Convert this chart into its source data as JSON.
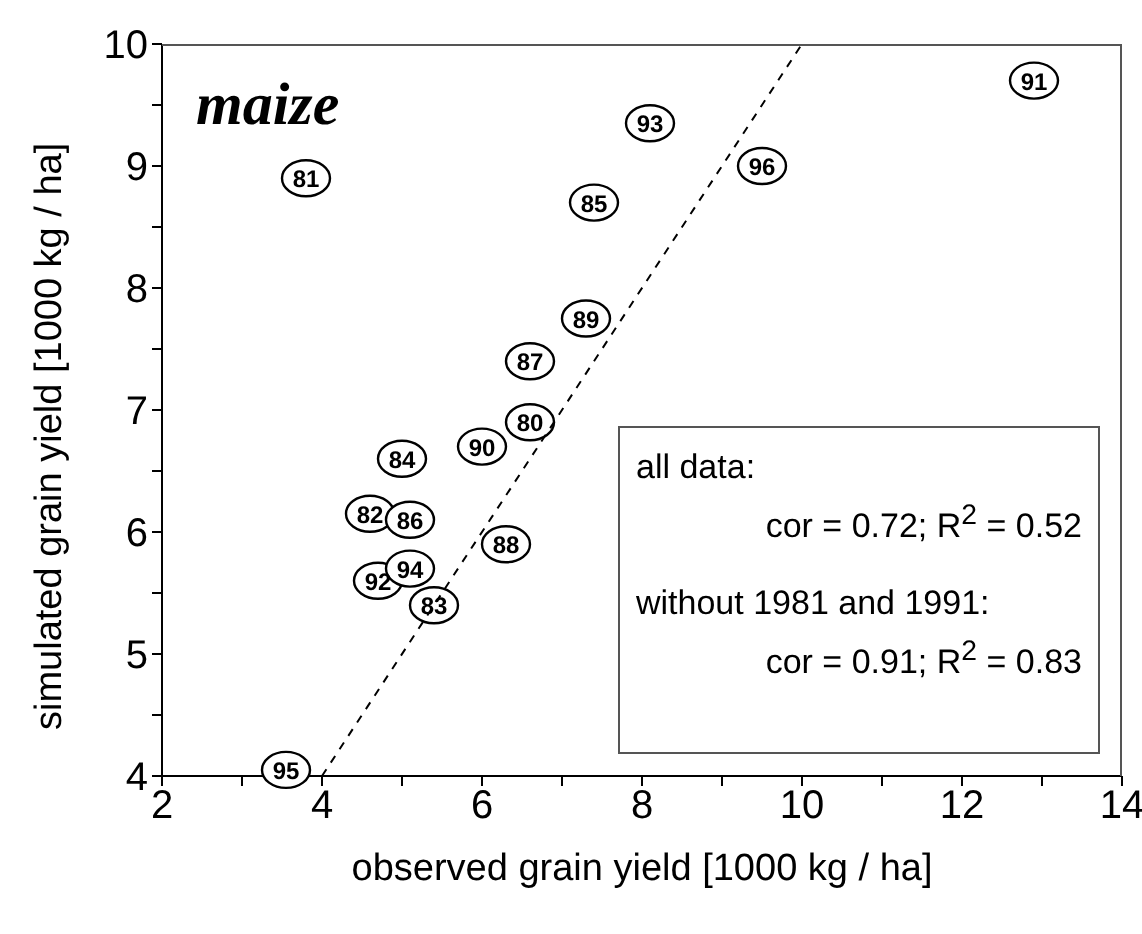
{
  "chart_data": {
    "type": "scatter",
    "title": "maize",
    "xlabel": "observed grain yield [1000 kg / ha]",
    "ylabel": "simulated grain yield [1000 kg / ha]",
    "xlim": [
      2,
      14
    ],
    "xticks": [
      2,
      {
        "value": 3,
        "label": null
      },
      4,
      {
        "value": 5,
        "label": null
      },
      6,
      {
        "value": 7,
        "label": null
      },
      8,
      {
        "value": 9,
        "label": null
      },
      10,
      {
        "value": 11,
        "label": null
      },
      12,
      {
        "value": 13,
        "label": null
      },
      14
    ],
    "ylim": [
      4,
      10
    ],
    "yticks": [
      4,
      {
        "value": 4.5,
        "label": null
      },
      5,
      {
        "value": 5.5,
        "label": null
      },
      6,
      {
        "value": 6.5,
        "label": null
      },
      7,
      {
        "value": 7.5,
        "label": null
      },
      8,
      {
        "value": 8.5,
        "label": null
      },
      9,
      {
        "value": 9.5,
        "label": null
      },
      10
    ],
    "series": [
      {
        "color": "#000000",
        "marker": "circle",
        "x": [
          6.6,
          3.8,
          4.6,
          5.4,
          5.0,
          7.4,
          5.1,
          6.6,
          6.3,
          7.3,
          6.0,
          12.9,
          4.7,
          8.1,
          5.1,
          3.55,
          9.5
        ],
        "values": [
          6.9,
          8.9,
          6.15,
          5.4,
          6.6,
          8.7,
          6.1,
          7.4,
          5.9,
          7.75,
          6.7,
          9.7,
          5.6,
          9.35,
          5.7,
          4.05,
          9.0
        ]
      },
      {
        "type": "line",
        "color": "#000000",
        "line_style": "dashed",
        "x": [
          4,
          10
        ],
        "values": [
          4,
          10
        ]
      }
    ],
    "annotations": [
      {
        "text": "80",
        "x": 6.6,
        "y": 6.9
      },
      {
        "text": "81",
        "x": 3.8,
        "y": 8.9
      },
      {
        "text": "82",
        "x": 4.6,
        "y": 6.15
      },
      {
        "text": "83",
        "x": 5.4,
        "y": 5.4
      },
      {
        "text": "84",
        "x": 5.0,
        "y": 6.6
      },
      {
        "text": "85",
        "x": 7.4,
        "y": 8.7
      },
      {
        "text": "86",
        "x": 5.1,
        "y": 6.1
      },
      {
        "text": "87",
        "x": 6.6,
        "y": 7.4
      },
      {
        "text": "88",
        "x": 6.3,
        "y": 5.9
      },
      {
        "text": "89",
        "x": 7.3,
        "y": 7.75
      },
      {
        "text": "90",
        "x": 6.0,
        "y": 6.7
      },
      {
        "text": "91",
        "x": 12.9,
        "y": 9.7
      },
      {
        "text": "92",
        "x": 4.7,
        "y": 5.6
      },
      {
        "text": "93",
        "x": 8.1,
        "y": 9.35
      },
      {
        "text": "94",
        "x": 5.1,
        "y": 5.7
      },
      {
        "text": "95",
        "x": 3.55,
        "y": 4.05
      },
      {
        "text": "96",
        "x": 9.5,
        "y": 9.0
      },
      "all data:",
      "cor = 0.72;  R$^{2}$ = 0.52",
      "without 1981 and 1991:",
      "cor = 0.91; R$^{2}$ = 0.83"
    ]
  }
}
